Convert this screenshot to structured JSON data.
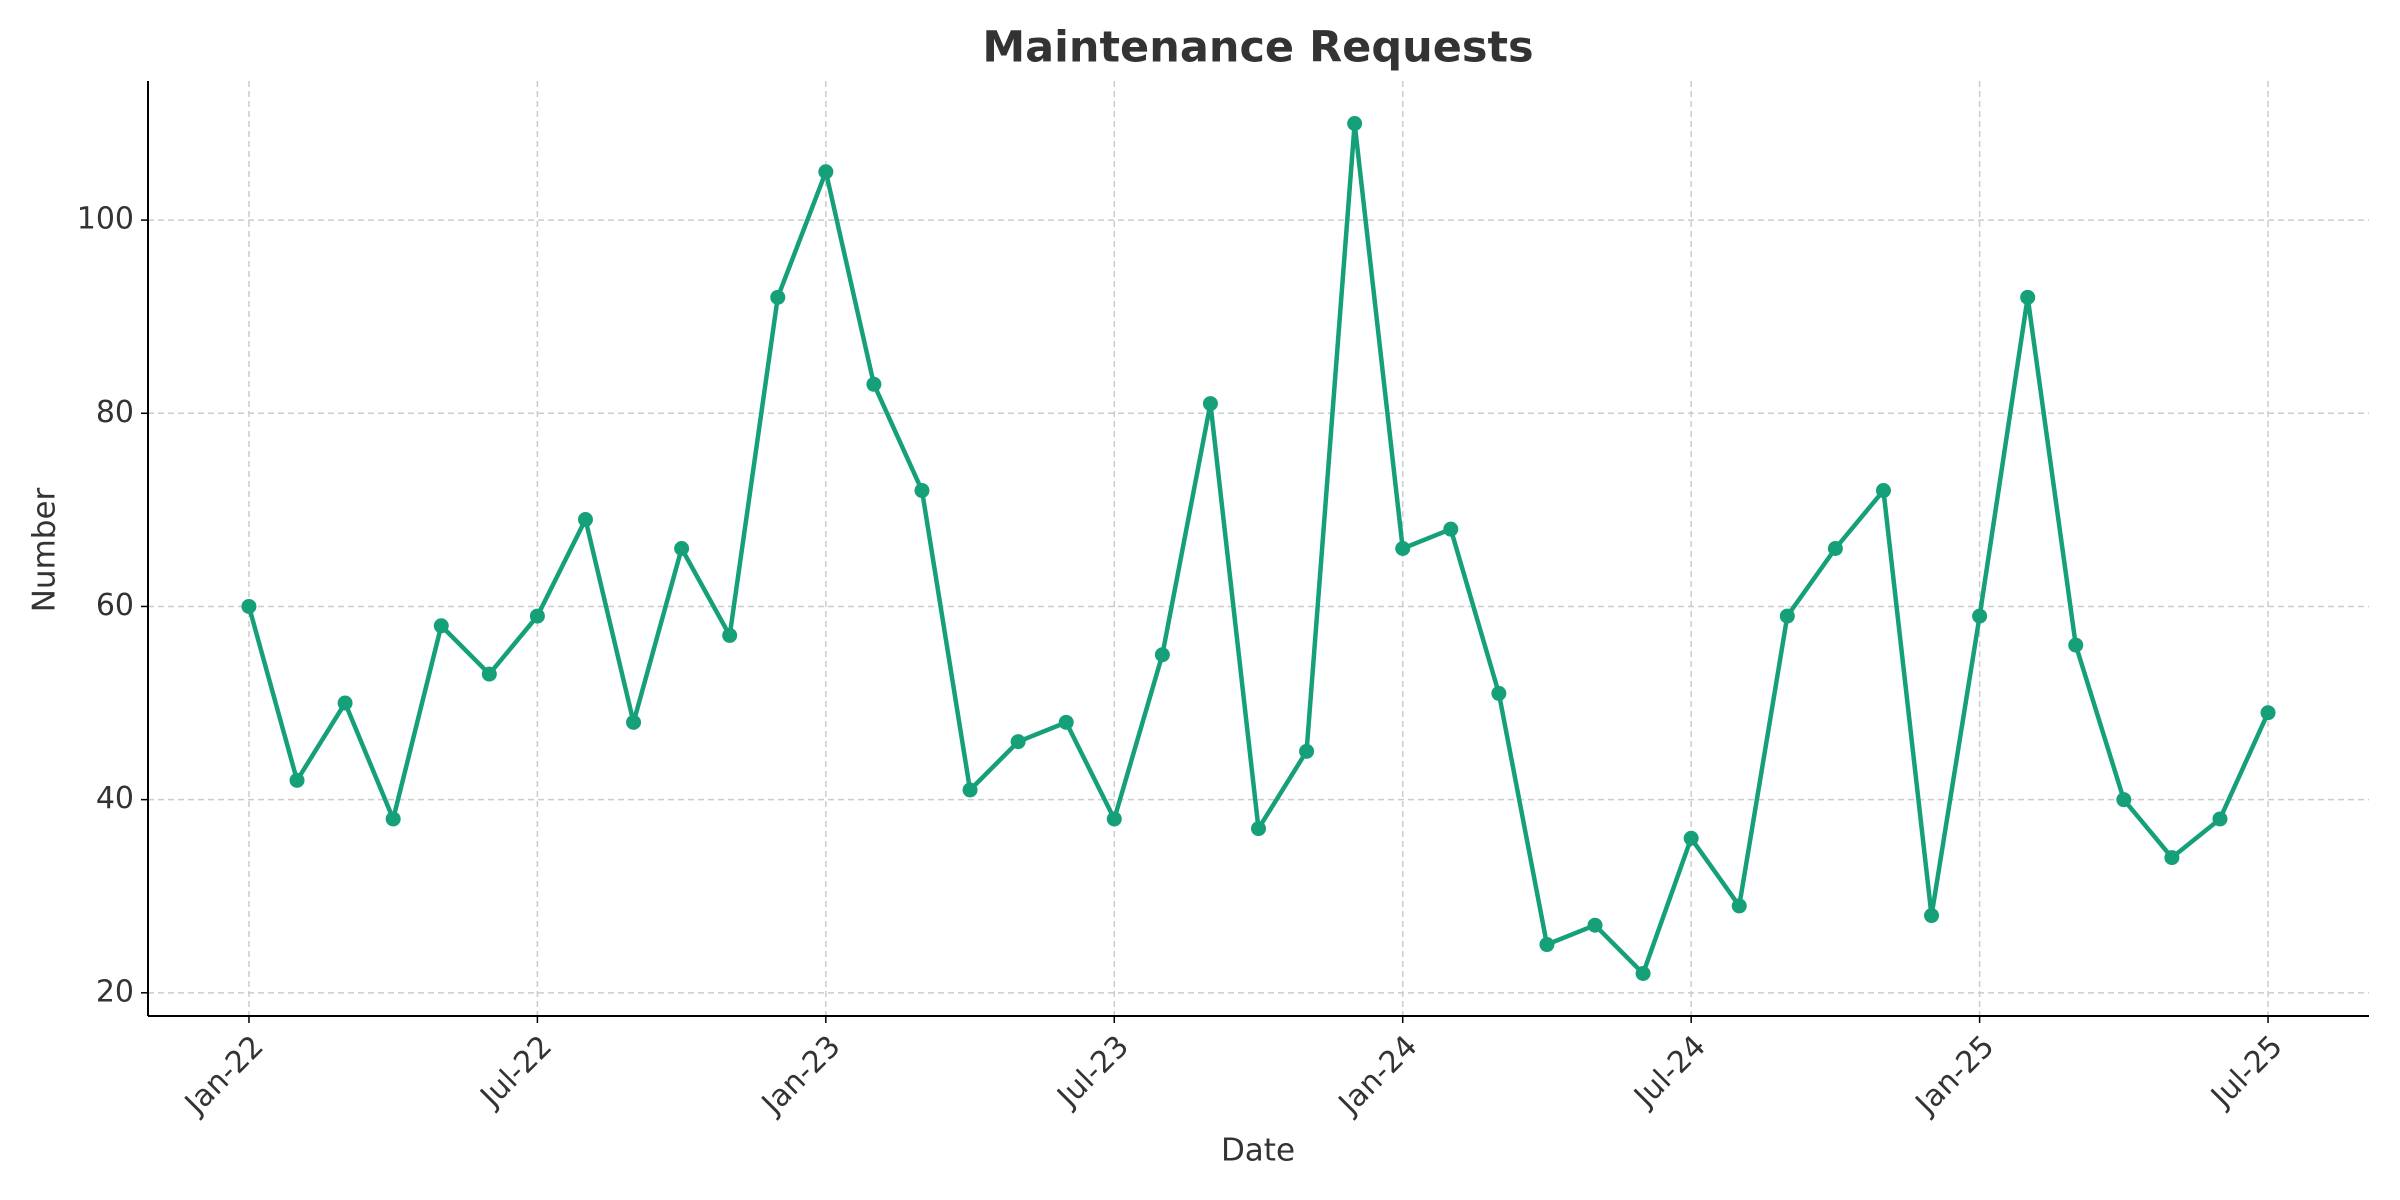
{
  "chart_data": {
    "type": "line",
    "title": "Maintenance Requests",
    "xlabel": "Date",
    "ylabel": "Number",
    "x": [
      "2022-01",
      "2022-02",
      "2022-03",
      "2022-04",
      "2022-05",
      "2022-06",
      "2022-07",
      "2022-08",
      "2022-09",
      "2022-10",
      "2022-11",
      "2022-12",
      "2023-01",
      "2023-02",
      "2023-03",
      "2023-04",
      "2023-05",
      "2023-06",
      "2023-07",
      "2023-08",
      "2023-09",
      "2023-10",
      "2023-11",
      "2023-12",
      "2024-01",
      "2024-02",
      "2024-03",
      "2024-04",
      "2024-05",
      "2024-06",
      "2024-07",
      "2024-08",
      "2024-09",
      "2024-10",
      "2024-11",
      "2024-12",
      "2025-01",
      "2025-02",
      "2025-03",
      "2025-04",
      "2025-05",
      "2025-06",
      "2025-07"
    ],
    "series": [
      {
        "name": "Maintenance Requests",
        "color": "#16a07a",
        "values": [
          60,
          42,
          50,
          38,
          58,
          53,
          59,
          69,
          48,
          66,
          57,
          92,
          105,
          83,
          72,
          41,
          46,
          48,
          38,
          55,
          81,
          37,
          45,
          110,
          66,
          68,
          51,
          25,
          27,
          22,
          36,
          29,
          59,
          66,
          72,
          28,
          59,
          92,
          56,
          40,
          34,
          38,
          49
        ]
      }
    ],
    "xticks": [
      {
        "value": "2022-01",
        "label": "Jan-22"
      },
      {
        "value": "2022-07",
        "label": "Jul-22"
      },
      {
        "value": "2023-01",
        "label": "Jan-23"
      },
      {
        "value": "2023-07",
        "label": "Jul-23"
      },
      {
        "value": "2024-01",
        "label": "Jan-24"
      },
      {
        "value": "2024-07",
        "label": "Jul-24"
      },
      {
        "value": "2025-01",
        "label": "Jan-25"
      },
      {
        "value": "2025-07",
        "label": "Jul-25"
      }
    ],
    "ylim": [
      17.6,
      114.4
    ],
    "yticks": [
      20,
      40,
      60,
      80,
      100
    ],
    "grid": true
  }
}
